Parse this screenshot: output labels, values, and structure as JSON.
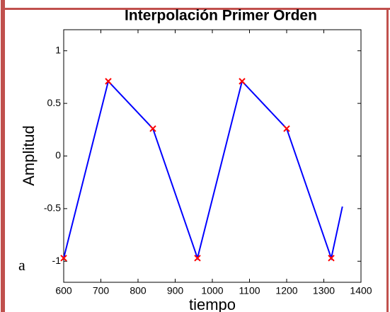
{
  "fragment": "a",
  "chart_data": {
    "type": "line",
    "title": "Interpolación Primer Orden",
    "xlabel": "tiempo",
    "ylabel": "Amplitud",
    "line": {
      "color": "#0000ff",
      "x": [
        600,
        720,
        840,
        960,
        1080,
        1200,
        1320,
        1350
      ],
      "values": [
        -0.97,
        0.71,
        0.26,
        -0.97,
        0.71,
        0.26,
        -0.97,
        -0.48
      ]
    },
    "markers": {
      "color": "#ff0000",
      "x": [
        600,
        720,
        840,
        960,
        1080,
        1200,
        1320
      ],
      "values": [
        -0.97,
        0.71,
        0.26,
        -0.97,
        0.71,
        0.26,
        -0.97
      ]
    },
    "xlim": [
      600,
      1400
    ],
    "xticks": [
      600,
      700,
      800,
      900,
      1000,
      1100,
      1200,
      1300,
      1400
    ],
    "ylim": [
      -1.2,
      1.2
    ],
    "yticks": [
      -1,
      -0.5,
      0,
      0.5,
      1
    ]
  }
}
